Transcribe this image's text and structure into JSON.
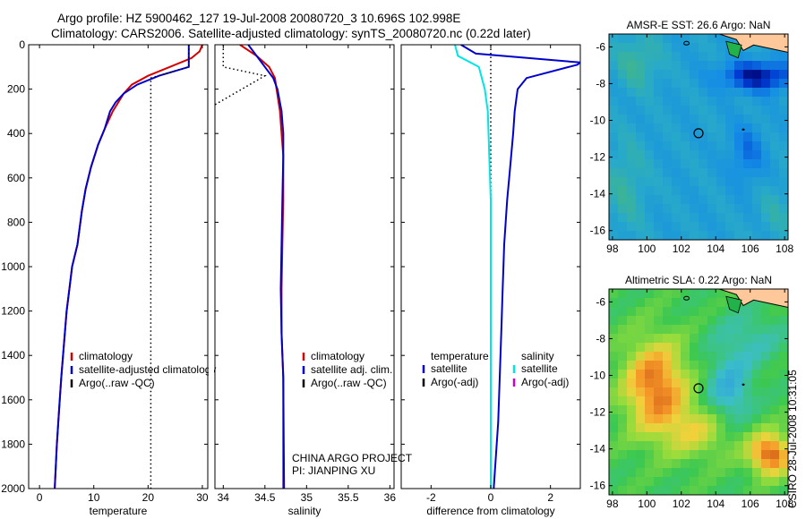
{
  "titles": {
    "line1": "Argo profile: HZ 5900462_127 19-Jul-2008 20080720_3 10.696S 102.998E",
    "line2": "Climatology: CARS2006. Satellite-adjusted climatology: synTS_20080720.nc (0.22d later)"
  },
  "stamp": "CSIRO 28-Jul-2008 10:31:05",
  "colors": {
    "clim": "#d40000",
    "sat": "#0000cc",
    "argo": "#000000",
    "sal_sat": "#00e5e5",
    "sal_argo": "#cc00cc",
    "land": "#ffc89a",
    "landgreen": "#22b24a"
  },
  "chart_data": [
    {
      "type": "line",
      "title": "",
      "xlabel": "temperature",
      "ylabel": "",
      "xlim": [
        -2,
        31
      ],
      "ylim": [
        2000,
        0
      ],
      "xticks": [
        0,
        10,
        20,
        30
      ],
      "yticks": [
        0,
        200,
        400,
        600,
        800,
        1000,
        1200,
        1400,
        1600,
        1800,
        2000
      ],
      "series": [
        {
          "name": "climatology",
          "points": [
            [
              30,
              0
            ],
            [
              29.5,
              30
            ],
            [
              28,
              60
            ],
            [
              24,
              100
            ],
            [
              20,
              140
            ],
            [
              17,
              180
            ],
            [
              15.5,
              220
            ],
            [
              13.5,
              300
            ],
            [
              12,
              380
            ],
            [
              10.8,
              450
            ],
            [
              9.5,
              550
            ],
            [
              8.5,
              650
            ],
            [
              7.8,
              750
            ],
            [
              7,
              900
            ],
            [
              6,
              1000
            ],
            [
              5.5,
              1100
            ],
            [
              5,
              1200
            ],
            [
              4.5,
              1350
            ],
            [
              4,
              1500
            ],
            [
              3.6,
              1650
            ],
            [
              3.2,
              1800
            ],
            [
              2.8,
              2000
            ]
          ]
        },
        {
          "name": "satellite-adjusted climatology",
          "points": [
            [
              27.5,
              0
            ],
            [
              27.5,
              100
            ],
            [
              22,
              140
            ],
            [
              18,
              180
            ],
            [
              15.5,
              220
            ],
            [
              14,
              260
            ],
            [
              13,
              300
            ],
            [
              12,
              380
            ],
            [
              10.8,
              450
            ],
            [
              9.5,
              550
            ],
            [
              8.5,
              650
            ],
            [
              7.8,
              750
            ],
            [
              7,
              900
            ],
            [
              6,
              1000
            ],
            [
              5.5,
              1100
            ],
            [
              5,
              1200
            ],
            [
              4.5,
              1350
            ],
            [
              4,
              1500
            ],
            [
              3.6,
              1650
            ],
            [
              3.2,
              1800
            ],
            [
              2.8,
              2000
            ]
          ]
        },
        {
          "name": "Argo(..raw -QC)",
          "points": [
            [
              27.5,
              0
            ],
            [
              27.5,
              100
            ],
            [
              20.5,
              150
            ],
            [
              20.5,
              2000
            ]
          ]
        }
      ],
      "legend": [
        "climatology",
        "satellite-adjusted climatology",
        "Argo(..raw -QC)"
      ]
    },
    {
      "type": "line",
      "title": "",
      "xlabel": "salinity",
      "ylabel": "",
      "xlim": [
        33.9,
        36.05
      ],
      "ylim": [
        2000,
        0
      ],
      "xticks": [
        34,
        34.5,
        35,
        35.5,
        36
      ],
      "xticklabels": [
        "34",
        "34.5",
        "35",
        "35.5",
        "36"
      ],
      "series": [
        {
          "name": "climatology",
          "points": [
            [
              34.2,
              0
            ],
            [
              34.4,
              50
            ],
            [
              34.55,
              100
            ],
            [
              34.62,
              150
            ],
            [
              34.64,
              200
            ],
            [
              34.68,
              300
            ],
            [
              34.7,
              400
            ],
            [
              34.72,
              500
            ],
            [
              34.72,
              700
            ],
            [
              34.71,
              900
            ],
            [
              34.7,
              1100
            ],
            [
              34.7,
              1300
            ],
            [
              34.72,
              1500
            ],
            [
              34.72,
              2000
            ]
          ]
        },
        {
          "name": "satellite adj. clim.",
          "points": [
            [
              34.3,
              0
            ],
            [
              34.4,
              50
            ],
            [
              34.5,
              100
            ],
            [
              34.6,
              150
            ],
            [
              34.65,
              200
            ],
            [
              34.7,
              300
            ],
            [
              34.72,
              400
            ],
            [
              34.72,
              500
            ],
            [
              34.71,
              700
            ],
            [
              34.7,
              900
            ],
            [
              34.69,
              1100
            ],
            [
              34.7,
              1300
            ],
            [
              34.72,
              1500
            ],
            [
              34.73,
              2000
            ]
          ]
        },
        {
          "name": "Argo(..raw -QC)",
          "points": [
            [
              34.0,
              0
            ],
            [
              34.0,
              100
            ],
            [
              34.5,
              140
            ],
            [
              33.9,
              270
            ]
          ]
        }
      ],
      "legend": [
        "climatology",
        "satellite adj. clim.",
        "Argo(..raw -QC)"
      ]
    },
    {
      "type": "line",
      "title": "",
      "xlabel": "difference from climatology",
      "ylabel": "",
      "xlim": [
        -3,
        3
      ],
      "ylim": [
        2000,
        0
      ],
      "xticks": [
        -2,
        0,
        2
      ],
      "legend_headers": [
        "temperature",
        "salinity"
      ],
      "series": [
        {
          "name": "temperature satellite",
          "points": [
            [
              -1,
              0
            ],
            [
              -0.5,
              40
            ],
            [
              3,
              80
            ],
            [
              2.9,
              90
            ],
            [
              1.2,
              150
            ],
            [
              0.9,
              200
            ],
            [
              0.8,
              300
            ],
            [
              0.75,
              400
            ],
            [
              0.65,
              550
            ],
            [
              0.55,
              700
            ],
            [
              0.45,
              900
            ],
            [
              0.4,
              1100
            ],
            [
              0.35,
              1300
            ],
            [
              0.3,
              1500
            ],
            [
              0.25,
              1700
            ],
            [
              0.1,
              2000
            ]
          ]
        },
        {
          "name": "temperature Argo(-adj)",
          "points": [
            [
              0,
              0
            ],
            [
              0,
              2000
            ]
          ]
        },
        {
          "name": "salinity satellite",
          "points": [
            [
              -1.2,
              0
            ],
            [
              -1.1,
              50
            ],
            [
              -0.4,
              100
            ],
            [
              -0.2,
              200
            ],
            [
              -0.1,
              300
            ],
            [
              -0.05,
              500
            ],
            [
              0,
              700
            ],
            [
              0,
              1000
            ],
            [
              0,
              1500
            ],
            [
              0,
              2000
            ]
          ]
        },
        {
          "name": "salinity Argo(-adj)",
          "points": []
        }
      ],
      "legend": [
        "satellite",
        "Argo(-adj)",
        "satellite",
        "Argo(-adj)"
      ]
    },
    {
      "type": "heatmap",
      "title": "AMSR-E SST: 26.6 Argo: NaN",
      "xlabel": "",
      "ylabel": "",
      "xlim": [
        97.8,
        108.2
      ],
      "ylim": [
        -16.5,
        -5.3
      ],
      "xticks": [
        98,
        100,
        102,
        104,
        106,
        108
      ],
      "yticks": [
        -6,
        -8,
        -10,
        -12,
        -14,
        -16
      ],
      "marker": [
        103,
        -10.7
      ]
    },
    {
      "type": "heatmap",
      "title": "Altimetric SLA: 0.22 Argo: NaN",
      "xlabel": "",
      "ylabel": "",
      "xlim": [
        97.8,
        108.2
      ],
      "ylim": [
        -16.5,
        -5.3
      ],
      "xticks": [
        98,
        100,
        102,
        104,
        106,
        108
      ],
      "yticks": [
        -6,
        -8,
        -10,
        -12,
        -14,
        -16
      ],
      "marker": [
        103,
        -10.7
      ]
    }
  ]
}
